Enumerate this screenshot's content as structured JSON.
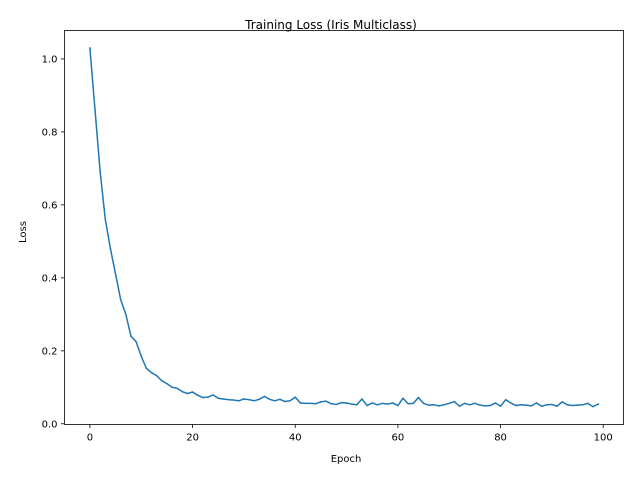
{
  "chart_data": {
    "type": "line",
    "title": "Training Loss (Iris Multiclass)",
    "xlabel": "Epoch",
    "ylabel": "Loss",
    "xlim": [
      -4.95,
      103.95
    ],
    "ylim": [
      -0.002,
      1.078
    ],
    "xticks": [
      0,
      20,
      40,
      60,
      80,
      100
    ],
    "xtick_labels": [
      "0",
      "20",
      "40",
      "60",
      "80",
      "100"
    ],
    "yticks": [
      0.0,
      0.2,
      0.4,
      0.6,
      0.8,
      1.0
    ],
    "ytick_labels": [
      "0.0",
      "0.2",
      "0.4",
      "0.6",
      "0.8",
      "1.0"
    ],
    "grid": false,
    "legend": "none",
    "series": [
      {
        "color": "#1f77b4",
        "x": [
          0,
          1,
          2,
          3,
          4,
          5,
          6,
          7,
          8,
          9,
          10,
          11,
          12,
          13,
          14,
          15,
          16,
          17,
          18,
          19,
          20,
          21,
          22,
          23,
          24,
          25,
          26,
          27,
          28,
          29,
          30,
          31,
          32,
          33,
          34,
          35,
          36,
          37,
          38,
          39,
          40,
          41,
          42,
          43,
          44,
          45,
          46,
          47,
          48,
          49,
          50,
          51,
          52,
          53,
          54,
          55,
          56,
          57,
          58,
          59,
          60,
          61,
          62,
          63,
          64,
          65,
          66,
          67,
          68,
          69,
          70,
          71,
          72,
          73,
          74,
          75,
          76,
          77,
          78,
          79,
          80,
          81,
          82,
          83,
          84,
          85,
          86,
          87,
          88,
          89,
          90,
          91,
          92,
          93,
          94,
          95,
          96,
          97,
          98,
          99
        ],
        "y": [
          1.03,
          0.86,
          0.69,
          0.56,
          0.48,
          0.41,
          0.34,
          0.3,
          0.24,
          0.225,
          0.185,
          0.152,
          0.14,
          0.132,
          0.118,
          0.11,
          0.1,
          0.097,
          0.088,
          0.083,
          0.087,
          0.078,
          0.072,
          0.073,
          0.079,
          0.07,
          0.068,
          0.066,
          0.065,
          0.063,
          0.068,
          0.066,
          0.063,
          0.067,
          0.075,
          0.067,
          0.063,
          0.067,
          0.061,
          0.063,
          0.073,
          0.057,
          0.056,
          0.056,
          0.055,
          0.06,
          0.062,
          0.055,
          0.053,
          0.058,
          0.057,
          0.054,
          0.052,
          0.068,
          0.05,
          0.057,
          0.052,
          0.056,
          0.054,
          0.057,
          0.05,
          0.07,
          0.055,
          0.056,
          0.072,
          0.056,
          0.051,
          0.052,
          0.049,
          0.052,
          0.056,
          0.061,
          0.048,
          0.056,
          0.052,
          0.056,
          0.051,
          0.049,
          0.05,
          0.057,
          0.048,
          0.066,
          0.057,
          0.05,
          0.052,
          0.051,
          0.049,
          0.057,
          0.048,
          0.052,
          0.053,
          0.048,
          0.06,
          0.052,
          0.05,
          0.051,
          0.052,
          0.056,
          0.047,
          0.054
        ]
      }
    ]
  }
}
